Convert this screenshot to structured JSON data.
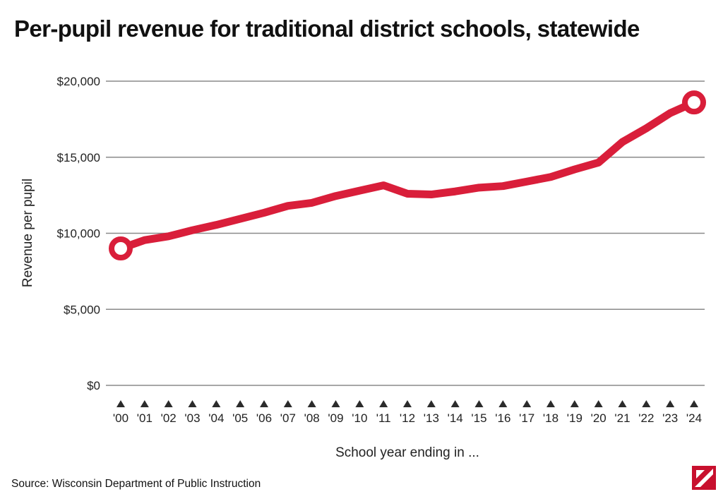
{
  "title": "Per-pupil revenue for traditional district schools, statewide",
  "source": "Source: Wisconsin Department of Public Instruction",
  "colors": {
    "line": "#d91e3a",
    "grid": "#8a8a8a",
    "tick_marker": "#2b2b2b",
    "logo": "#c8102e"
  },
  "logo_icon": "publisher-logo-icon",
  "chart_data": {
    "type": "line",
    "title": "Per-pupil revenue for traditional district schools, statewide",
    "xlabel": "School year ending in ...",
    "ylabel": "Revenue per pupil",
    "ylim": [
      0,
      20000
    ],
    "yticks": [
      0,
      5000,
      10000,
      15000,
      20000
    ],
    "ytick_labels": [
      "$0",
      "$5,000",
      "$10,000",
      "$15,000",
      "$20,000"
    ],
    "categories": [
      "'00",
      "'01",
      "'02",
      "'03",
      "'04",
      "'05",
      "'06",
      "'07",
      "'08",
      "'09",
      "'10",
      "'11",
      "'12",
      "'13",
      "'14",
      "'15",
      "'16",
      "'17",
      "'18",
      "'19",
      "'20",
      "'21",
      "'22",
      "'23",
      "'24"
    ],
    "series": [
      {
        "values": [
          9000,
          9550,
          9800,
          10200,
          10550,
          10950,
          11350,
          11800,
          12000,
          12450,
          12800,
          13150,
          12600,
          12550,
          12750,
          13000,
          13100,
          13400,
          13700,
          14200,
          14650,
          16000,
          16900,
          17900,
          18600
        ]
      }
    ],
    "endpoint_markers": true,
    "grid": true,
    "legend": "none"
  }
}
